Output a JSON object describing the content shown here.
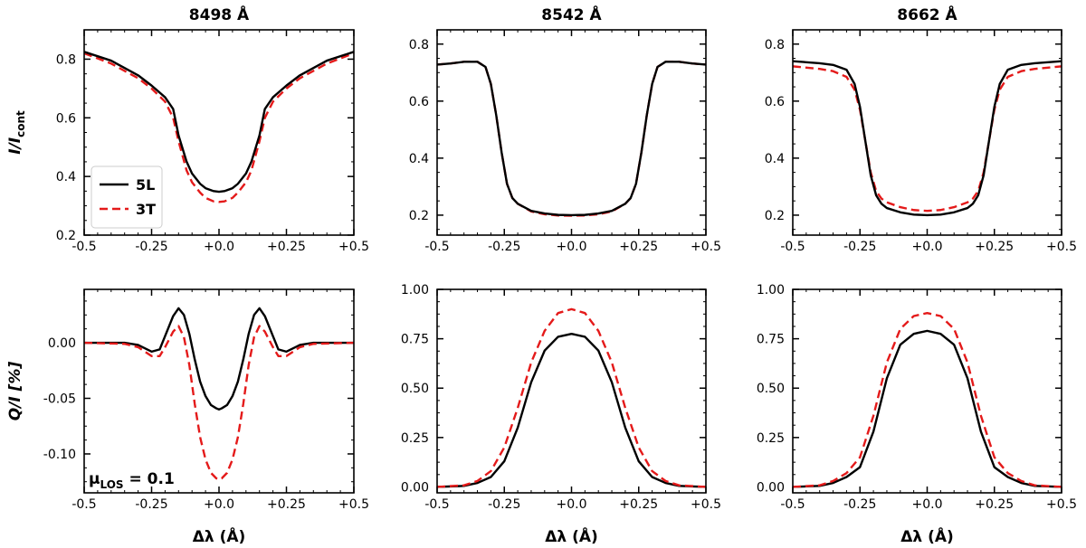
{
  "chart_data": [
    {
      "type": "line",
      "panel": "I-8498",
      "title": "8498 Å",
      "xlabel": "",
      "ylabel": "I/I",
      "ylabel_sub": "cont",
      "xlim": [
        -0.5,
        0.5
      ],
      "ylim": [
        0.2,
        0.9
      ],
      "xticks": [
        -0.5,
        -0.25,
        0.0,
        0.25,
        0.5
      ],
      "xtick_labels": [
        "-0.5",
        "-0.25",
        "+0.0",
        "+0.25",
        "+0.5"
      ],
      "yticks": [
        0.2,
        0.4,
        0.6,
        0.8
      ],
      "ytick_labels": [
        "0.2",
        "0.4",
        "0.6",
        "0.8"
      ],
      "legend": {
        "placement": "lower-left",
        "entries": [
          {
            "label": "5L",
            "style": "solid",
            "color": "#000000"
          },
          {
            "label": "3T",
            "style": "dashed",
            "color": "#e41a1a"
          }
        ]
      },
      "series": [
        {
          "name": "5L",
          "x": [
            -0.5,
            -0.4,
            -0.3,
            -0.25,
            -0.2,
            -0.17,
            -0.15,
            -0.12,
            -0.1,
            -0.07,
            -0.05,
            -0.02,
            0,
            0.02,
            0.05,
            0.07,
            0.1,
            0.12,
            0.15,
            0.17,
            0.2,
            0.25,
            0.3,
            0.4,
            0.5
          ],
          "y": [
            0.825,
            0.795,
            0.745,
            0.71,
            0.67,
            0.63,
            0.54,
            0.45,
            0.41,
            0.375,
            0.36,
            0.35,
            0.348,
            0.35,
            0.36,
            0.375,
            0.41,
            0.45,
            0.54,
            0.63,
            0.67,
            0.71,
            0.745,
            0.795,
            0.825
          ]
        },
        {
          "name": "3T",
          "x": [
            -0.5,
            -0.4,
            -0.3,
            -0.25,
            -0.2,
            -0.17,
            -0.15,
            -0.12,
            -0.1,
            -0.07,
            -0.05,
            -0.02,
            0,
            0.02,
            0.05,
            0.07,
            0.1,
            0.12,
            0.15,
            0.17,
            0.2,
            0.25,
            0.3,
            0.4,
            0.5
          ],
          "y": [
            0.82,
            0.785,
            0.735,
            0.7,
            0.655,
            0.6,
            0.52,
            0.42,
            0.38,
            0.345,
            0.327,
            0.315,
            0.313,
            0.315,
            0.327,
            0.345,
            0.38,
            0.42,
            0.52,
            0.6,
            0.655,
            0.7,
            0.735,
            0.785,
            0.82
          ]
        }
      ]
    },
    {
      "type": "line",
      "panel": "I-8542",
      "title": "8542 Å",
      "xlim": [
        -0.5,
        0.5
      ],
      "ylim": [
        0.13,
        0.85
      ],
      "xticks": [
        -0.5,
        -0.25,
        0.0,
        0.25,
        0.5
      ],
      "xtick_labels": [
        "-0.5",
        "-0.25",
        "+0.0",
        "+0.25",
        "+0.5"
      ],
      "yticks": [
        0.2,
        0.4,
        0.6,
        0.8
      ],
      "ytick_labels": [
        "0.2",
        "0.4",
        "0.6",
        "0.8"
      ],
      "series": [
        {
          "name": "5L",
          "x": [
            -0.5,
            -0.45,
            -0.4,
            -0.35,
            -0.32,
            -0.3,
            -0.28,
            -0.26,
            -0.24,
            -0.22,
            -0.2,
            -0.15,
            -0.1,
            -0.05,
            0,
            0.05,
            0.1,
            0.15,
            0.2,
            0.22,
            0.24,
            0.26,
            0.28,
            0.3,
            0.32,
            0.35,
            0.4,
            0.45,
            0.5
          ],
          "y": [
            0.728,
            0.732,
            0.738,
            0.738,
            0.72,
            0.66,
            0.55,
            0.42,
            0.31,
            0.26,
            0.24,
            0.215,
            0.206,
            0.201,
            0.2,
            0.201,
            0.206,
            0.215,
            0.24,
            0.26,
            0.31,
            0.42,
            0.55,
            0.66,
            0.72,
            0.738,
            0.738,
            0.732,
            0.728
          ]
        },
        {
          "name": "3T",
          "x": [
            -0.5,
            -0.45,
            -0.4,
            -0.35,
            -0.32,
            -0.3,
            -0.28,
            -0.26,
            -0.24,
            -0.22,
            -0.2,
            -0.15,
            -0.1,
            -0.05,
            0,
            0.05,
            0.1,
            0.15,
            0.2,
            0.22,
            0.24,
            0.26,
            0.28,
            0.3,
            0.32,
            0.35,
            0.4,
            0.45,
            0.5
          ],
          "y": [
            0.728,
            0.732,
            0.738,
            0.738,
            0.72,
            0.66,
            0.55,
            0.42,
            0.31,
            0.26,
            0.24,
            0.213,
            0.203,
            0.199,
            0.198,
            0.199,
            0.203,
            0.213,
            0.24,
            0.26,
            0.31,
            0.42,
            0.55,
            0.66,
            0.72,
            0.738,
            0.738,
            0.732,
            0.728
          ]
        }
      ]
    },
    {
      "type": "line",
      "panel": "I-8662",
      "title": "8662 Å",
      "xlim": [
        -0.5,
        0.5
      ],
      "ylim": [
        0.13,
        0.85
      ],
      "xticks": [
        -0.5,
        -0.25,
        0.0,
        0.25,
        0.5
      ],
      "xtick_labels": [
        "-0.5",
        "-0.25",
        "+0.0",
        "+0.25",
        "+0.5"
      ],
      "yticks": [
        0.2,
        0.4,
        0.6,
        0.8
      ],
      "ytick_labels": [
        "0.2",
        "0.4",
        "0.6",
        "0.8"
      ],
      "series": [
        {
          "name": "5L",
          "x": [
            -0.5,
            -0.4,
            -0.35,
            -0.3,
            -0.27,
            -0.25,
            -0.23,
            -0.21,
            -0.19,
            -0.17,
            -0.15,
            -0.1,
            -0.05,
            0,
            0.05,
            0.1,
            0.15,
            0.17,
            0.19,
            0.21,
            0.23,
            0.25,
            0.27,
            0.3,
            0.35,
            0.4,
            0.5
          ],
          "y": [
            0.74,
            0.733,
            0.727,
            0.71,
            0.66,
            0.58,
            0.46,
            0.34,
            0.27,
            0.24,
            0.225,
            0.21,
            0.202,
            0.2,
            0.202,
            0.21,
            0.225,
            0.24,
            0.27,
            0.34,
            0.46,
            0.58,
            0.66,
            0.71,
            0.727,
            0.733,
            0.74
          ]
        },
        {
          "name": "3T",
          "x": [
            -0.5,
            -0.4,
            -0.35,
            -0.3,
            -0.27,
            -0.25,
            -0.23,
            -0.21,
            -0.19,
            -0.17,
            -0.15,
            -0.1,
            -0.05,
            0,
            0.05,
            0.1,
            0.15,
            0.17,
            0.19,
            0.21,
            0.23,
            0.25,
            0.27,
            0.3,
            0.35,
            0.4,
            0.5
          ],
          "y": [
            0.722,
            0.713,
            0.705,
            0.685,
            0.64,
            0.57,
            0.46,
            0.35,
            0.285,
            0.258,
            0.245,
            0.228,
            0.218,
            0.215,
            0.218,
            0.228,
            0.245,
            0.258,
            0.285,
            0.35,
            0.46,
            0.57,
            0.64,
            0.685,
            0.705,
            0.713,
            0.722
          ]
        }
      ]
    },
    {
      "type": "line",
      "panel": "Q-8498",
      "xlabel": "Δλ (Å)",
      "ylabel": "Q/I [%]",
      "xlim": [
        -0.5,
        0.5
      ],
      "ylim": [
        -0.135,
        0.048
      ],
      "xticks": [
        -0.5,
        -0.25,
        0.0,
        0.25,
        0.5
      ],
      "xtick_labels": [
        "-0.5",
        "-0.25",
        "+0.0",
        "+0.25",
        "+0.5"
      ],
      "yticks": [
        0.0,
        -0.05,
        -0.1
      ],
      "ytick_labels": [
        "0.00",
        "-0.05",
        "-0.10"
      ],
      "annotation": {
        "text": "μ",
        "sub": "LOS",
        "rest": " = 0.1"
      },
      "series": [
        {
          "name": "5L",
          "x": [
            -0.5,
            -0.35,
            -0.3,
            -0.25,
            -0.22,
            -0.2,
            -0.17,
            -0.15,
            -0.13,
            -0.11,
            -0.09,
            -0.07,
            -0.05,
            -0.03,
            -0.01,
            0,
            0.01,
            0.03,
            0.05,
            0.07,
            0.09,
            0.11,
            0.13,
            0.15,
            0.17,
            0.2,
            0.22,
            0.25,
            0.3,
            0.35,
            0.5
          ],
          "y": [
            0.0,
            0.0,
            -0.002,
            -0.008,
            -0.006,
            0.006,
            0.024,
            0.031,
            0.025,
            0.008,
            -0.015,
            -0.035,
            -0.048,
            -0.056,
            -0.059,
            -0.06,
            -0.059,
            -0.056,
            -0.048,
            -0.035,
            -0.015,
            0.008,
            0.025,
            0.031,
            0.024,
            0.006,
            -0.006,
            -0.008,
            -0.002,
            0.0,
            0.0
          ]
        },
        {
          "name": "3T",
          "x": [
            -0.5,
            -0.35,
            -0.3,
            -0.25,
            -0.22,
            -0.2,
            -0.17,
            -0.15,
            -0.13,
            -0.11,
            -0.09,
            -0.07,
            -0.05,
            -0.03,
            -0.01,
            0,
            0.01,
            0.03,
            0.05,
            0.07,
            0.09,
            0.11,
            0.13,
            0.15,
            0.17,
            0.2,
            0.22,
            0.25,
            0.3,
            0.35,
            0.5
          ],
          "y": [
            0.0,
            -0.001,
            -0.004,
            -0.012,
            -0.012,
            -0.004,
            0.01,
            0.015,
            0.005,
            -0.02,
            -0.055,
            -0.085,
            -0.105,
            -0.117,
            -0.122,
            -0.123,
            -0.122,
            -0.117,
            -0.105,
            -0.085,
            -0.055,
            -0.02,
            0.005,
            0.015,
            0.01,
            -0.004,
            -0.012,
            -0.012,
            -0.004,
            -0.001,
            0.0
          ]
        }
      ]
    },
    {
      "type": "line",
      "panel": "Q-8542",
      "xlabel": "Δλ (Å)",
      "xlim": [
        -0.5,
        0.5
      ],
      "ylim": [
        -0.03,
        1.0
      ],
      "xticks": [
        -0.5,
        -0.25,
        0.0,
        0.25,
        0.5
      ],
      "xtick_labels": [
        "-0.5",
        "-0.25",
        "+0.0",
        "+0.25",
        "+0.5"
      ],
      "yticks": [
        0.0,
        0.25,
        0.5,
        0.75,
        1.0
      ],
      "ytick_labels": [
        "0.00",
        "0.25",
        "0.50",
        "0.75",
        "1.00"
      ],
      "series": [
        {
          "name": "5L",
          "x": [
            -0.5,
            -0.4,
            -0.35,
            -0.3,
            -0.25,
            -0.2,
            -0.15,
            -0.1,
            -0.05,
            0,
            0.05,
            0.1,
            0.15,
            0.2,
            0.25,
            0.3,
            0.35,
            0.4,
            0.5
          ],
          "y": [
            0.0,
            0.005,
            0.02,
            0.05,
            0.13,
            0.3,
            0.53,
            0.69,
            0.76,
            0.775,
            0.76,
            0.69,
            0.53,
            0.3,
            0.13,
            0.05,
            0.02,
            0.005,
            0.0
          ]
        },
        {
          "name": "3T",
          "x": [
            -0.5,
            -0.4,
            -0.35,
            -0.3,
            -0.25,
            -0.2,
            -0.15,
            -0.1,
            -0.05,
            0,
            0.05,
            0.1,
            0.15,
            0.2,
            0.25,
            0.3,
            0.35,
            0.4,
            0.5
          ],
          "y": [
            0.0,
            0.008,
            0.03,
            0.08,
            0.2,
            0.4,
            0.63,
            0.79,
            0.88,
            0.9,
            0.88,
            0.79,
            0.63,
            0.4,
            0.2,
            0.08,
            0.03,
            0.008,
            0.0
          ]
        }
      ]
    },
    {
      "type": "line",
      "panel": "Q-8662",
      "xlabel": "Δλ (Å)",
      "xlim": [
        -0.5,
        0.5
      ],
      "ylim": [
        -0.03,
        1.0
      ],
      "xticks": [
        -0.5,
        -0.25,
        0.0,
        0.25,
        0.5
      ],
      "xtick_labels": [
        "-0.5",
        "-0.25",
        "+0.0",
        "+0.25",
        "+0.5"
      ],
      "yticks": [
        0.0,
        0.25,
        0.5,
        0.75,
        1.0
      ],
      "ytick_labels": [
        "0.00",
        "0.25",
        "0.50",
        "0.75",
        "1.00"
      ],
      "series": [
        {
          "name": "5L",
          "x": [
            -0.5,
            -0.4,
            -0.35,
            -0.3,
            -0.25,
            -0.2,
            -0.15,
            -0.1,
            -0.05,
            0,
            0.05,
            0.1,
            0.15,
            0.2,
            0.25,
            0.3,
            0.35,
            0.4,
            0.5
          ],
          "y": [
            0.0,
            0.005,
            0.02,
            0.05,
            0.1,
            0.28,
            0.55,
            0.72,
            0.775,
            0.79,
            0.775,
            0.72,
            0.55,
            0.28,
            0.1,
            0.05,
            0.02,
            0.005,
            0.0
          ]
        },
        {
          "name": "3T",
          "x": [
            -0.5,
            -0.4,
            -0.35,
            -0.3,
            -0.25,
            -0.2,
            -0.15,
            -0.1,
            -0.05,
            0,
            0.05,
            0.1,
            0.15,
            0.2,
            0.25,
            0.3,
            0.35,
            0.4,
            0.5
          ],
          "y": [
            0.0,
            0.008,
            0.03,
            0.07,
            0.15,
            0.36,
            0.63,
            0.8,
            0.865,
            0.88,
            0.865,
            0.8,
            0.63,
            0.36,
            0.15,
            0.07,
            0.03,
            0.008,
            0.0
          ]
        }
      ]
    }
  ],
  "colors": {
    "5L": "#000000",
    "3T": "#e41a1a"
  }
}
